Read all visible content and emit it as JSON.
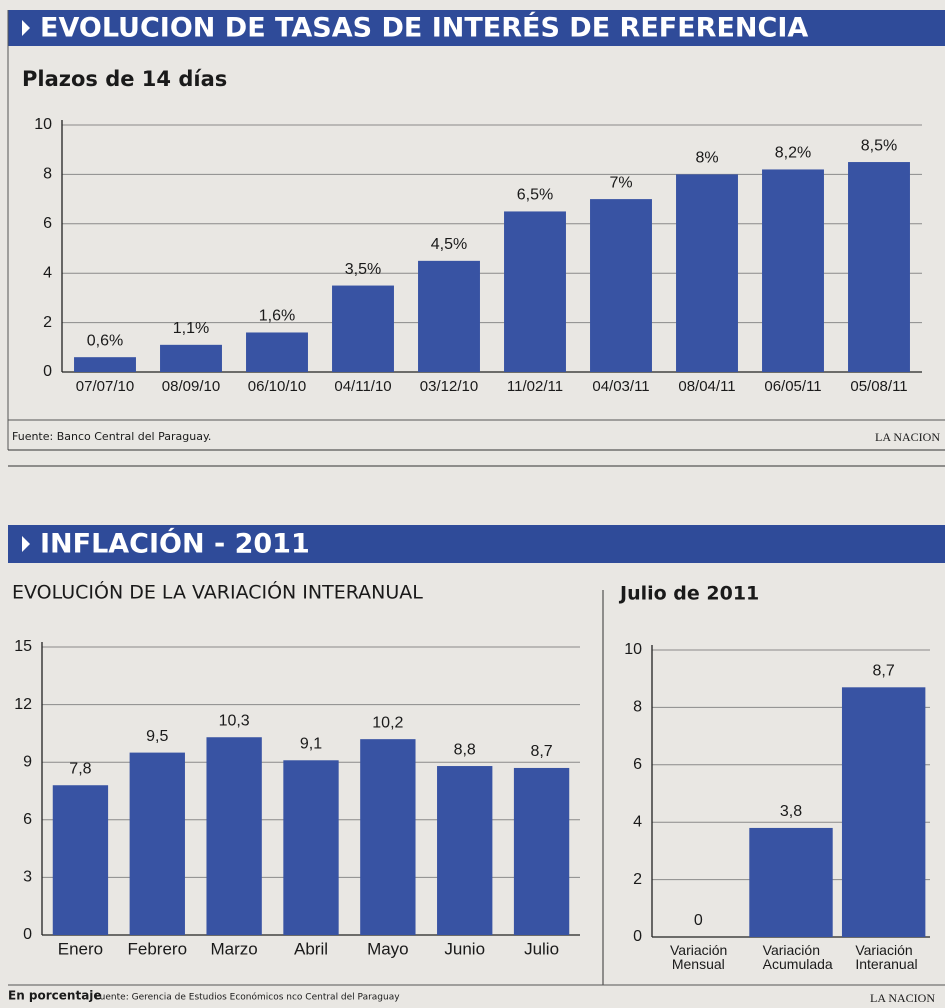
{
  "sections": [
    {
      "title": "EVOLUCION DE TASAS DE INTERÉS DE REFERENCIA",
      "source": "Fuente: Banco Central del Paraguay.",
      "publisher": "LA NACION"
    },
    {
      "title": "INFLACIÓN - 2011",
      "note": "En porcentaje",
      "source": "Fuente: Gerencia de Estudios Económicos nco Central del Paraguay",
      "publisher": "LA NACION"
    }
  ],
  "chart_data": [
    {
      "type": "bar",
      "title": "Plazos de 14 días",
      "categories": [
        "07/07/10",
        "08/09/10",
        "06/10/10",
        "04/11/10",
        "03/12/10",
        "11/02/11",
        "04/03/11",
        "08/04/11",
        "06/05/11",
        "05/08/11"
      ],
      "values": [
        0.6,
        1.1,
        1.6,
        3.5,
        4.5,
        6.5,
        7,
        8,
        8.2,
        8.5
      ],
      "value_labels": [
        "0,6%",
        "1,1%",
        "1,6%",
        "3,5%",
        "4,5%",
        "6,5%",
        "7%",
        "8%",
        "8,2%",
        "8,5%"
      ],
      "color": "#3853a3",
      "ylim": [
        0,
        10
      ],
      "yticks": [
        0,
        2,
        4,
        6,
        8,
        10
      ],
      "grid": true
    },
    {
      "type": "bar",
      "title": "EVOLUCIÓN DE LA VARIACIÓN INTERANUAL",
      "categories": [
        "Enero",
        "Febrero",
        "Marzo",
        "Abril",
        "Mayo",
        "Junio",
        "Julio"
      ],
      "values": [
        7.8,
        9.5,
        10.3,
        9.1,
        10.2,
        8.8,
        8.7
      ],
      "value_labels": [
        "7,8",
        "9,5",
        "10,3",
        "9,1",
        "10,2",
        "8,8",
        "8,7"
      ],
      "color": "#3853a3",
      "ylim": [
        0,
        15
      ],
      "yticks": [
        0,
        3,
        6,
        9,
        12,
        15
      ],
      "grid": true
    },
    {
      "type": "bar",
      "title": "Julio de 2011",
      "categories": [
        "Variación Mensual",
        "Variación Acumulada",
        "Variación Interanual"
      ],
      "values": [
        0,
        3.8,
        8.7
      ],
      "value_labels": [
        "0",
        "3,8",
        "8,7"
      ],
      "color": "#3853a3",
      "ylim": [
        0,
        10
      ],
      "yticks": [
        0,
        2,
        4,
        6,
        8,
        10
      ],
      "grid": true
    }
  ]
}
